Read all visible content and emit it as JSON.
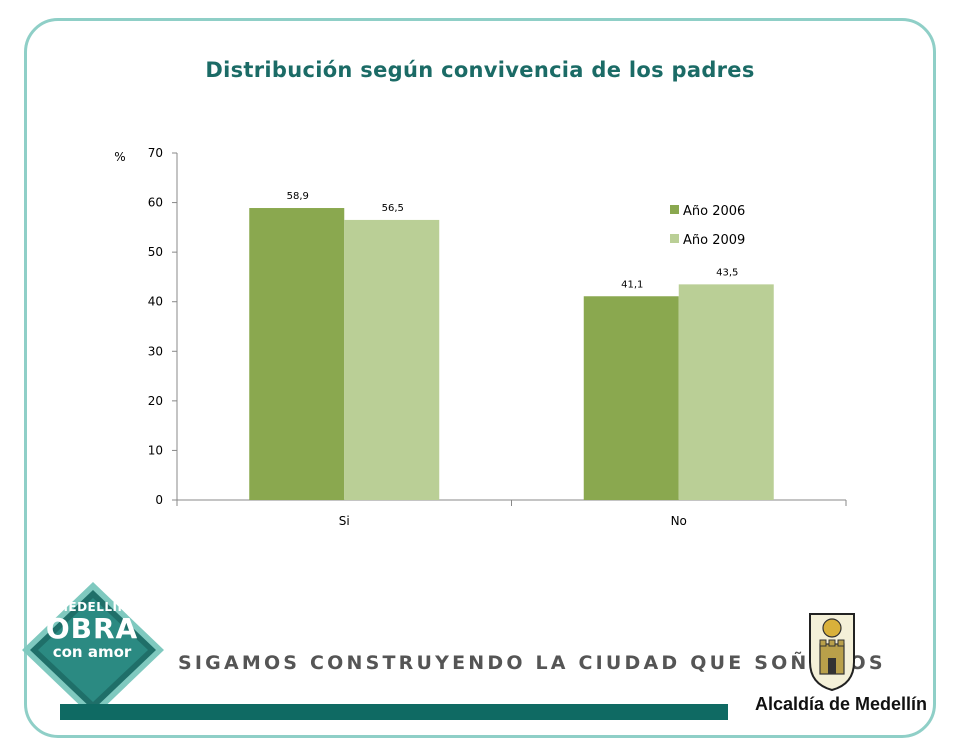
{
  "chart_data": {
    "type": "bar",
    "title": "Distribución según convivencia de los padres",
    "ylabel": "%",
    "xlabel": "",
    "categories": [
      "Si",
      "No"
    ],
    "ylim": [
      0,
      70
    ],
    "yticks": [
      0,
      10,
      20,
      30,
      40,
      50,
      60,
      70
    ],
    "grid": false,
    "legend_position": "right",
    "series": [
      {
        "name": "Año 2006",
        "values": [
          58.9,
          41.1
        ],
        "labels": [
          "58,9",
          "41,1"
        ],
        "color": "#8aa84f"
      },
      {
        "name": "Año 2009",
        "values": [
          56.5,
          43.5
        ],
        "labels": [
          "56,5",
          "43,5"
        ],
        "color": "#bacf96"
      }
    ]
  },
  "footer": {
    "slogan": "SIGAMOS CONSTRUYENDO LA CIUDAD QUE SOÑAMOS",
    "badge_line1": "MEDELLÍN",
    "badge_line2": "OBRA",
    "badge_line3": "con amor",
    "alcaldia": "Alcaldía de Medellín"
  },
  "colors": {
    "frame": "#8fcfc7",
    "title": "#1b6b66",
    "band": "#0f6a63"
  }
}
